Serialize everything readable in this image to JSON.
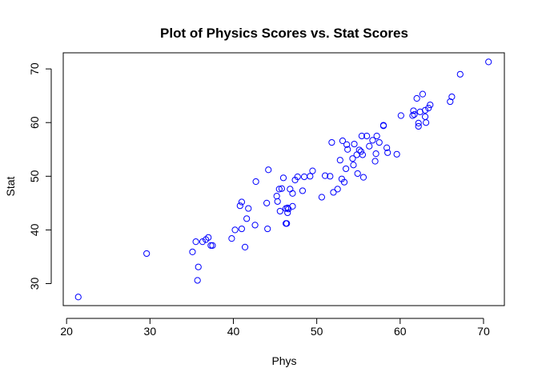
{
  "chart_data": {
    "type": "scatter",
    "title": "Plot of Physics Scores vs. Stat Scores",
    "xlabel": "Phys",
    "ylabel": "Stat",
    "xlim": [
      19.6,
      72.5
    ],
    "ylim": [
      25.9,
      73.0
    ],
    "xticks": [
      20,
      30,
      40,
      50,
      60,
      70
    ],
    "yticks": [
      30,
      40,
      50,
      60,
      70
    ],
    "grid": false,
    "marker": "open-circle",
    "point_color": "#0000ff",
    "series": [
      {
        "x": [
          21.4,
          29.6,
          35.1,
          35.5,
          35.7,
          35.8,
          36.3,
          36.7,
          37.0,
          37.3,
          37.5,
          39.8,
          40.2,
          40.8,
          41.0,
          41.0,
          41.4,
          41.6,
          41.8,
          42.6,
          42.7,
          44.0,
          44.1,
          44.2,
          45.2,
          45.3,
          45.5,
          45.6,
          45.8,
          46.0,
          46.3,
          46.3,
          46.4,
          46.5,
          46.5,
          46.6,
          46.8,
          47.1,
          47.1,
          47.4,
          47.7,
          48.3,
          48.5,
          49.2,
          49.5,
          50.6,
          51.0,
          51.6,
          51.8,
          52.0,
          52.5,
          52.8,
          53.0,
          53.1,
          53.3,
          53.5,
          53.6,
          53.7,
          54.3,
          54.4,
          54.5,
          54.8,
          54.9,
          55.1,
          55.3,
          55.4,
          55.5,
          55.6,
          56.0,
          56.3,
          56.7,
          57.0,
          57.1,
          57.2,
          57.5,
          58.0,
          58.0,
          58.4,
          58.5,
          59.6,
          60.1,
          61.5,
          61.6,
          61.7,
          62.0,
          62.2,
          62.2,
          62.4,
          62.7,
          63.0,
          63.0,
          63.1,
          63.4,
          63.6,
          66.0,
          66.2,
          67.2,
          70.6
        ],
        "y": [
          27.5,
          35.6,
          35.9,
          37.8,
          30.6,
          33.1,
          37.8,
          38.2,
          38.6,
          37.1,
          37.1,
          38.4,
          40.0,
          44.5,
          40.2,
          45.2,
          36.8,
          42.1,
          44.0,
          40.9,
          49.0,
          45.0,
          40.2,
          51.2,
          46.3,
          45.3,
          47.6,
          43.5,
          47.7,
          49.7,
          44.0,
          41.2,
          41.2,
          44.1,
          43.2,
          43.9,
          47.6,
          44.4,
          46.8,
          49.3,
          49.9,
          47.3,
          49.9,
          50.0,
          51.0,
          46.1,
          50.1,
          50.0,
          56.3,
          47.0,
          47.6,
          53.0,
          49.5,
          56.6,
          48.9,
          51.4,
          55.9,
          55.0,
          53.3,
          52.1,
          56.0,
          54.0,
          50.5,
          54.9,
          54.6,
          57.5,
          54.0,
          49.8,
          57.5,
          55.6,
          56.7,
          52.8,
          54.2,
          57.5,
          56.3,
          59.4,
          59.5,
          55.3,
          54.4,
          54.1,
          61.3,
          61.3,
          62.2,
          61.5,
          64.5,
          59.3,
          59.9,
          62.0,
          65.3,
          61.1,
          62.3,
          60.0,
          62.7,
          63.3,
          63.9,
          64.8,
          69.0,
          71.3
        ]
      }
    ]
  }
}
